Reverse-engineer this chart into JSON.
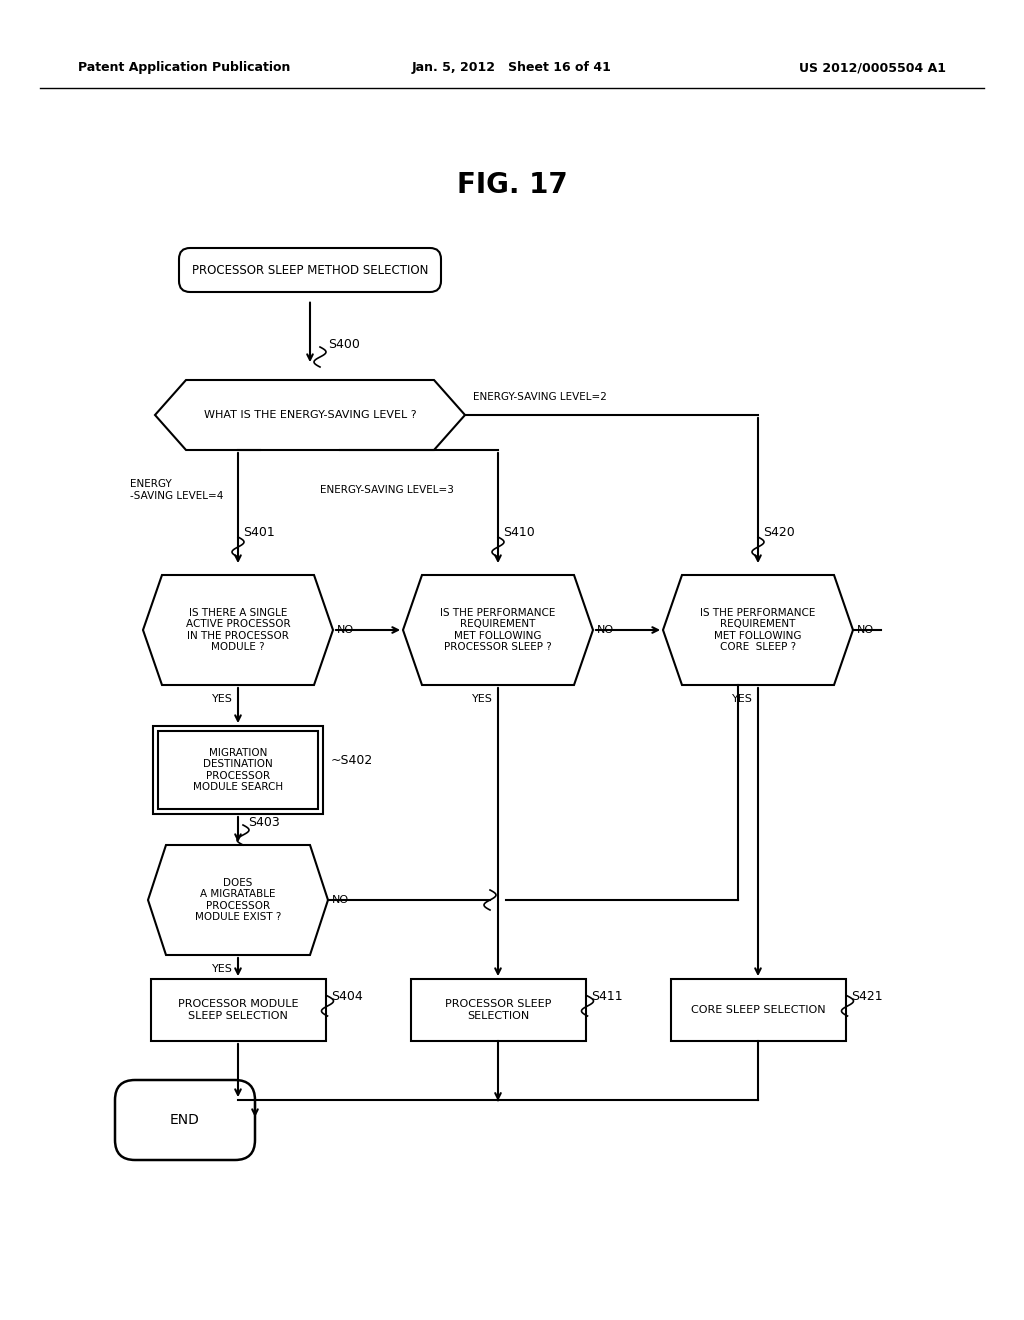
{
  "title": "FIG. 17",
  "header_left": "Patent Application Publication",
  "header_center": "Jan. 5, 2012   Sheet 16 of 41",
  "header_right": "US 2012/0005504 A1",
  "bg_color": "#ffffff",
  "fg_color": "#000000",
  "start_text": "PROCESSOR SLEEP METHOD SELECTION",
  "diamond0_text": "WHAT IS THE ENERGY-SAVING LEVEL ?",
  "level2_label": "ENERGY-SAVING LEVEL=2",
  "level3_label": "ENERGY-SAVING LEVEL=3",
  "level4_label": "ENERGY\n-SAVING LEVEL=4",
  "s400_label": "S400",
  "s401_label": "S401",
  "s410_label": "S410",
  "s420_label": "S420",
  "s402_label": "S402",
  "s403_label": "S403",
  "s404_label": "S404",
  "s411_label": "S411",
  "s421_label": "S421",
  "d1_text": "IS THERE A SINGLE\nACTIVE PROCESSOR\nIN THE PROCESSOR\nMODULE ?",
  "d2_text": "IS THE PERFORMANCE\nREQUIREMENT\nMET FOLLOWING\nPROCESSOR SLEEP ?",
  "d3_text": "IS THE PERFORMANCE\nREQUIREMENT\nMET FOLLOWING\nCORE  SLEEP ?",
  "d4_text": "DOES\nA MIGRATABLE\nPROCESSOR\nMODULE EXIST ?",
  "box402_text": "MIGRATION\nDESTINATION\nPROCESSOR\nMODULE SEARCH",
  "box404_text": "PROCESSOR MODULE\nSLEEP SELECTION",
  "box411_text": "PROCESSOR SLEEP\nSELECTION",
  "box421_text": "CORE SLEEP SELECTION",
  "end_text": "END"
}
